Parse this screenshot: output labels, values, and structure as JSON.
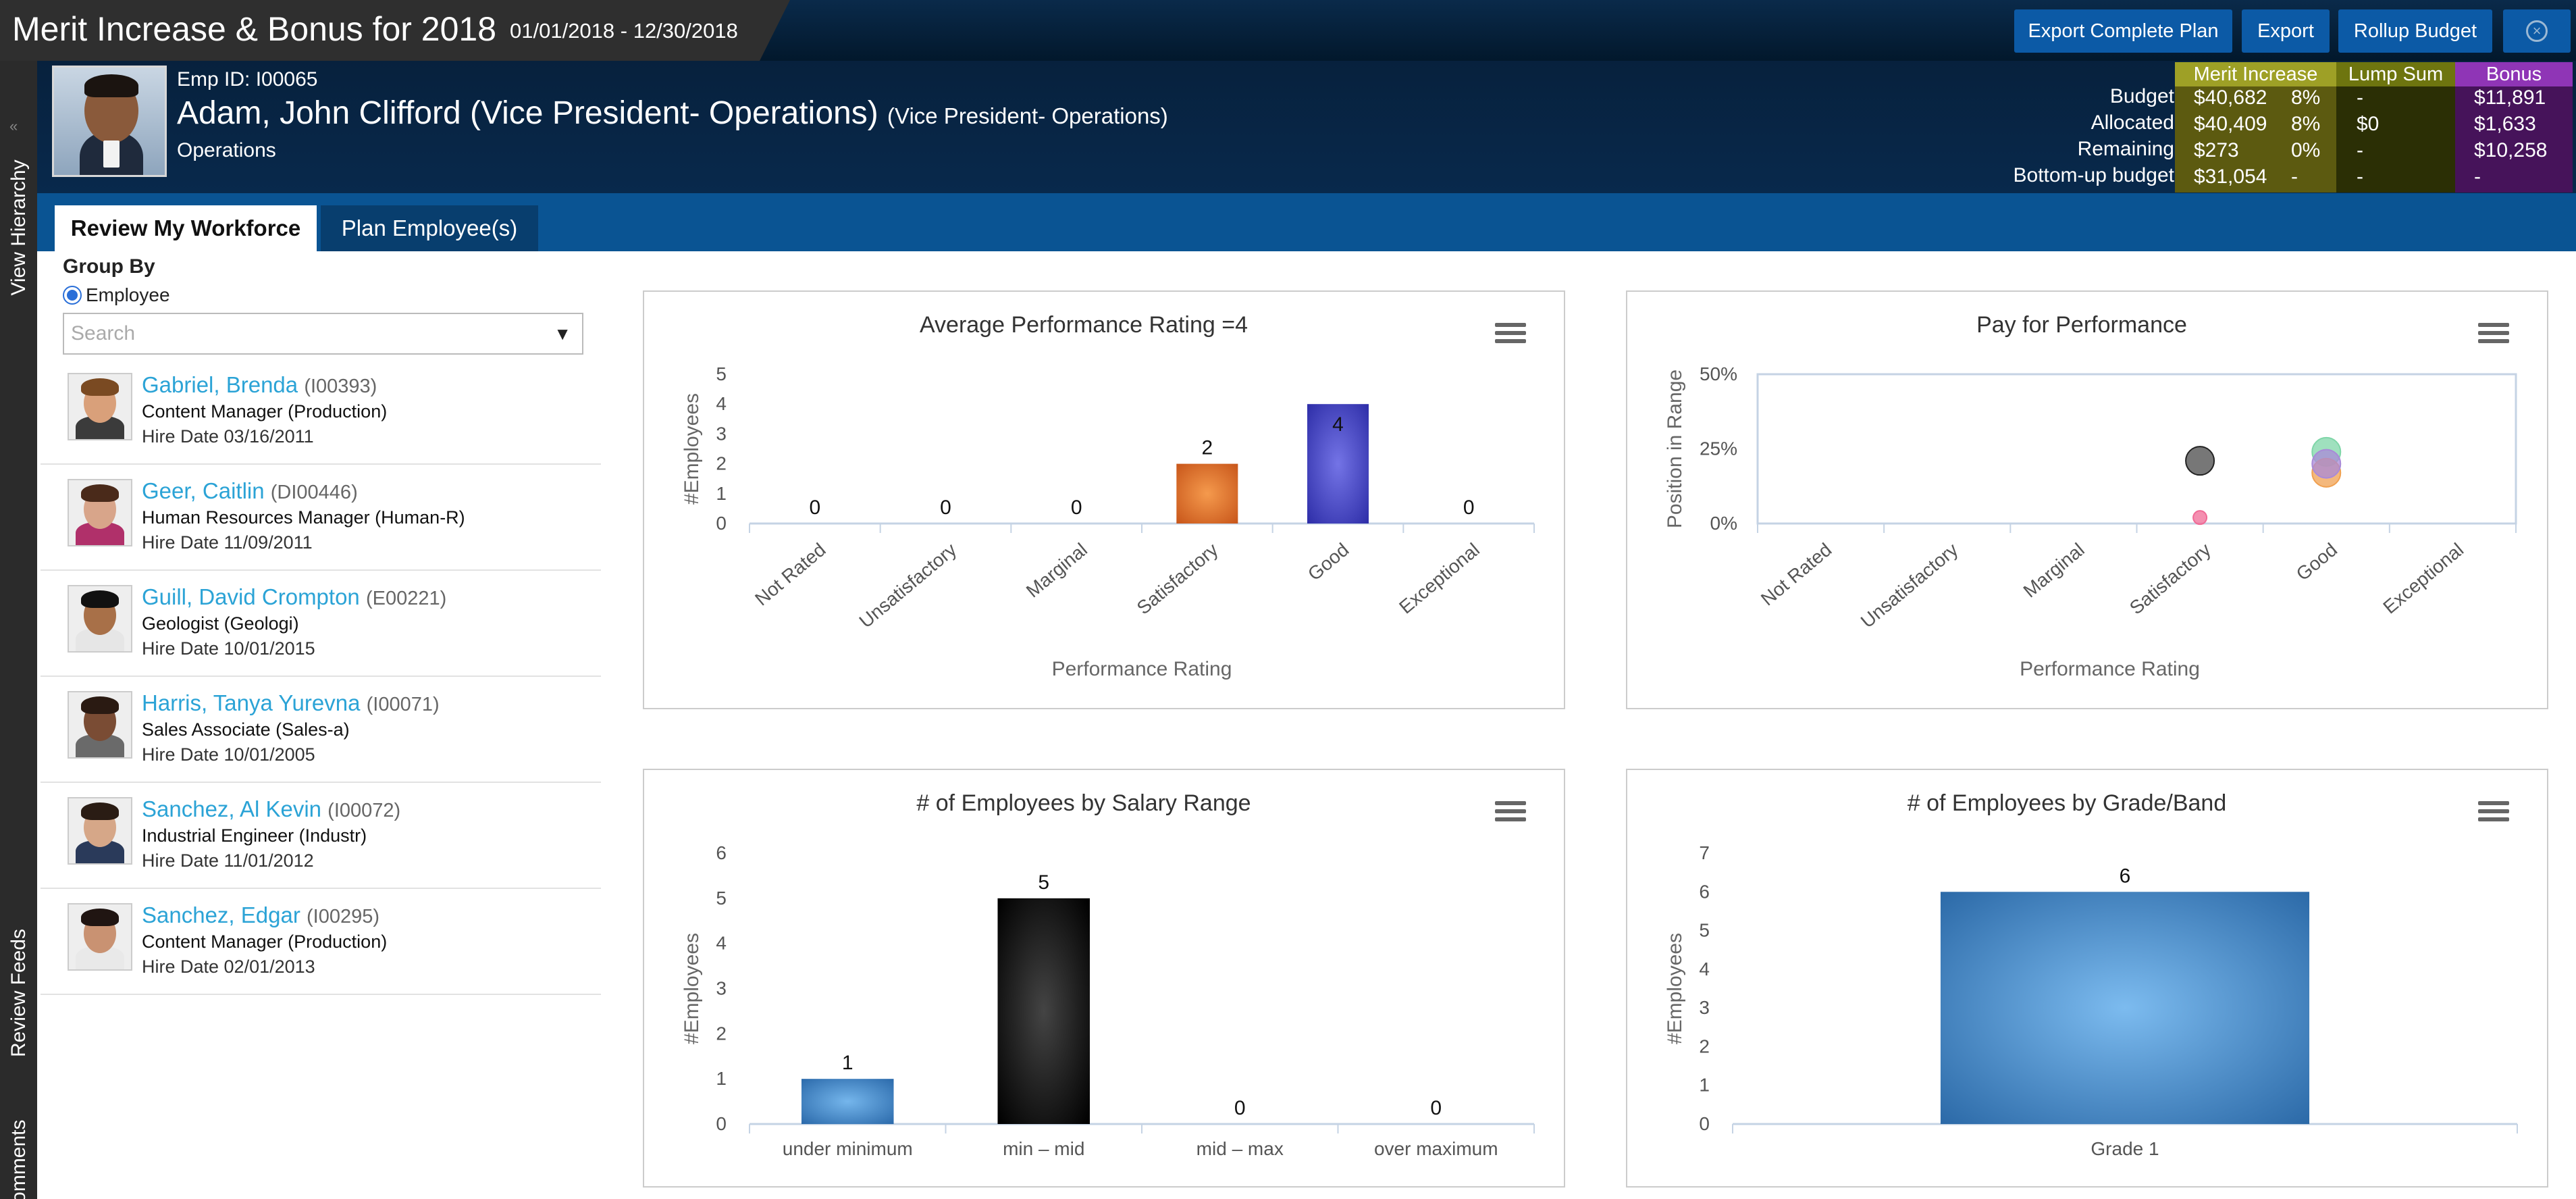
{
  "app": {
    "title": "Merit Increase & Bonus for 2018",
    "date_range": "01/01/2018 - 12/30/2018",
    "buttons": {
      "export_complete": "Export Complete Plan",
      "export": "Export",
      "rollup": "Rollup Budget"
    },
    "close_icon": "×"
  },
  "rail": {
    "hierarchy": "View Hierarchy",
    "feeds": "Review Feeds",
    "comments": "Comments"
  },
  "employee": {
    "emp_id": "Emp ID: I00065",
    "name": "Adam, John Clifford (Vice President- Operations)",
    "title_sub": "(Vice President- Operations)",
    "department": "Operations"
  },
  "budget": {
    "row_labels": [
      "Budget",
      "Allocated",
      "Remaining",
      "Bottom-up budget"
    ],
    "merit_header": "Merit Increase",
    "lump_header": "Lump Sum",
    "bonus_header": "Bonus",
    "merit_amounts": [
      "$40,682",
      "$40,409",
      "$273",
      "$31,054"
    ],
    "merit_pcts": [
      "8%",
      "8%",
      "0%",
      "-"
    ],
    "lump": [
      "-",
      "$0",
      "-",
      "-"
    ],
    "bonus": [
      "$11,891",
      "$1,633",
      "$10,258",
      "-"
    ]
  },
  "tabs": {
    "review": "Review My Workforce",
    "plan": "Plan Employee(s)"
  },
  "filter": {
    "group_by": "Group By",
    "option": "Employee",
    "search_placeholder": "Search"
  },
  "employees": [
    {
      "name": "Gabriel, Brenda",
      "code": "(I00393)",
      "role": "Content Manager (Production)",
      "hire": "Hire Date 03/16/2011"
    },
    {
      "name": "Geer, Caitlin",
      "code": "(DI00446)",
      "role": "Human Resources Manager (Human-R)",
      "hire": "Hire Date 11/09/2011"
    },
    {
      "name": "Guill, David Crompton",
      "code": "(E00221)",
      "role": "Geologist (Geologi)",
      "hire": "Hire Date 10/01/2015"
    },
    {
      "name": "Harris, Tanya Yurevna",
      "code": "(I00071)",
      "role": "Sales Associate (Sales-a)",
      "hire": "Hire Date 10/01/2005"
    },
    {
      "name": "Sanchez, Al Kevin",
      "code": "(I00072)",
      "role": "Industrial Engineer (Industr)",
      "hire": "Hire Date 11/01/2012"
    },
    {
      "name": "Sanchez, Edgar",
      "code": "(I00295)",
      "role": "Content Manager (Production)",
      "hire": "Hire Date 02/01/2013"
    }
  ],
  "chart_data": [
    {
      "type": "bar",
      "title": "Average Performance Rating =4",
      "xlabel": "Performance Rating",
      "ylabel": "#Employees",
      "categories": [
        "Not Rated",
        "Unsatisfactory",
        "Marginal",
        "Satisfactory",
        "Good",
        "Exceptional"
      ],
      "values": [
        0,
        0,
        0,
        2,
        4,
        0
      ],
      "bar_colors": [
        "#cccccc",
        "#cccccc",
        "#cccccc",
        "#e0742a",
        "#4a4ac8",
        "#cccccc"
      ],
      "ylim": [
        0,
        5
      ],
      "yticks": [
        "0",
        "1",
        "2",
        "3",
        "4",
        "5"
      ]
    },
    {
      "type": "scatter",
      "title": "Pay for Performance",
      "xlabel": "Performance Rating",
      "ylabel": "Position in Range",
      "categories": [
        "Not Rated",
        "Unsatisfactory",
        "Marginal",
        "Satisfactory",
        "Good",
        "Exceptional"
      ],
      "yticks": [
        "0%",
        "25%",
        "50%"
      ],
      "ylim": [
        0,
        50
      ],
      "points": [
        {
          "category": "Satisfactory",
          "y": 21,
          "size": "large",
          "color": "#777777"
        },
        {
          "category": "Satisfactory",
          "y": 2,
          "size": "small",
          "color": "#f06a96"
        },
        {
          "category": "Good",
          "y": 24,
          "size": "large",
          "color": "#7fd6a8"
        },
        {
          "category": "Good",
          "y": 17,
          "size": "large",
          "color": "#f0a050"
        },
        {
          "category": "Good",
          "y": 20,
          "size": "large",
          "color": "#a98ad8"
        }
      ]
    },
    {
      "type": "bar",
      "title": "# of Employees by Salary Range",
      "xlabel": "",
      "ylabel": "#Employees",
      "categories": [
        "under minimum",
        "min – mid",
        "mid – max",
        "over maximum"
      ],
      "values": [
        1,
        5,
        0,
        0
      ],
      "bar_colors": [
        "#3a7fc4",
        "#1a1a1a",
        "#cccccc",
        "#cccccc"
      ],
      "ylim": [
        0,
        6
      ],
      "yticks": [
        "0",
        "1",
        "2",
        "3",
        "4",
        "5",
        "6"
      ]
    },
    {
      "type": "bar",
      "title": "# of Employees by Grade/Band",
      "xlabel": "",
      "ylabel": "#Employees",
      "categories": [
        "Grade 1"
      ],
      "values": [
        6
      ],
      "bar_colors": [
        "#3d80c2"
      ],
      "ylim": [
        0,
        7
      ],
      "yticks": [
        "0",
        "1",
        "2",
        "3",
        "4",
        "5",
        "6",
        "7"
      ]
    }
  ]
}
